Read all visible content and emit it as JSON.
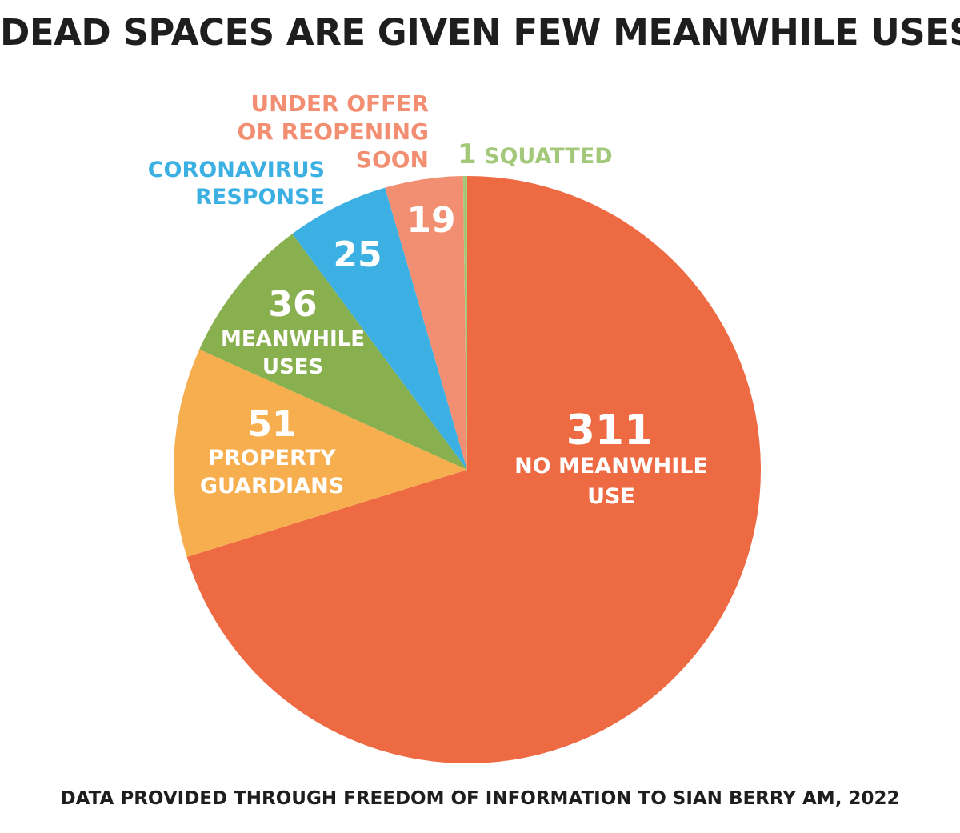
{
  "chart_data": {
    "type": "pie",
    "title": "DEAD SPACES ARE GIVEN FEW MEANWHILE USES:",
    "footnote": "DATA PROVIDED THROUGH FREEDOM OF INFORMATION TO SIAN BERRY AM, 2022",
    "start": "top, clockwise",
    "slices": [
      {
        "value": 311,
        "value_label": "311",
        "label_lines": [
          "NO MEANWHILE",
          "USE"
        ],
        "color": "#ee6a43"
      },
      {
        "value": 51,
        "value_label": "51",
        "label_lines": [
          "PROPERTY",
          "GUARDIANS"
        ],
        "color": "#f6ae4f"
      },
      {
        "value": 36,
        "value_label": "36",
        "label_lines": [
          "MEANWHILE",
          "USES"
        ],
        "color": "#89b04f"
      },
      {
        "value": 25,
        "value_label": "25",
        "label_lines": [
          "CORONAVIRUS",
          "RESPONSE"
        ],
        "color": "#3cb0e2"
      },
      {
        "value": 19,
        "value_label": "19",
        "label_lines": [
          "UNDER OFFER",
          "OR REOPENING",
          "SOON"
        ],
        "color": "#f28e72"
      },
      {
        "value": 1,
        "value_label": "1",
        "label_lines": [
          "SQUATTED"
        ],
        "color": "#a3c879"
      }
    ],
    "legend": "none"
  }
}
